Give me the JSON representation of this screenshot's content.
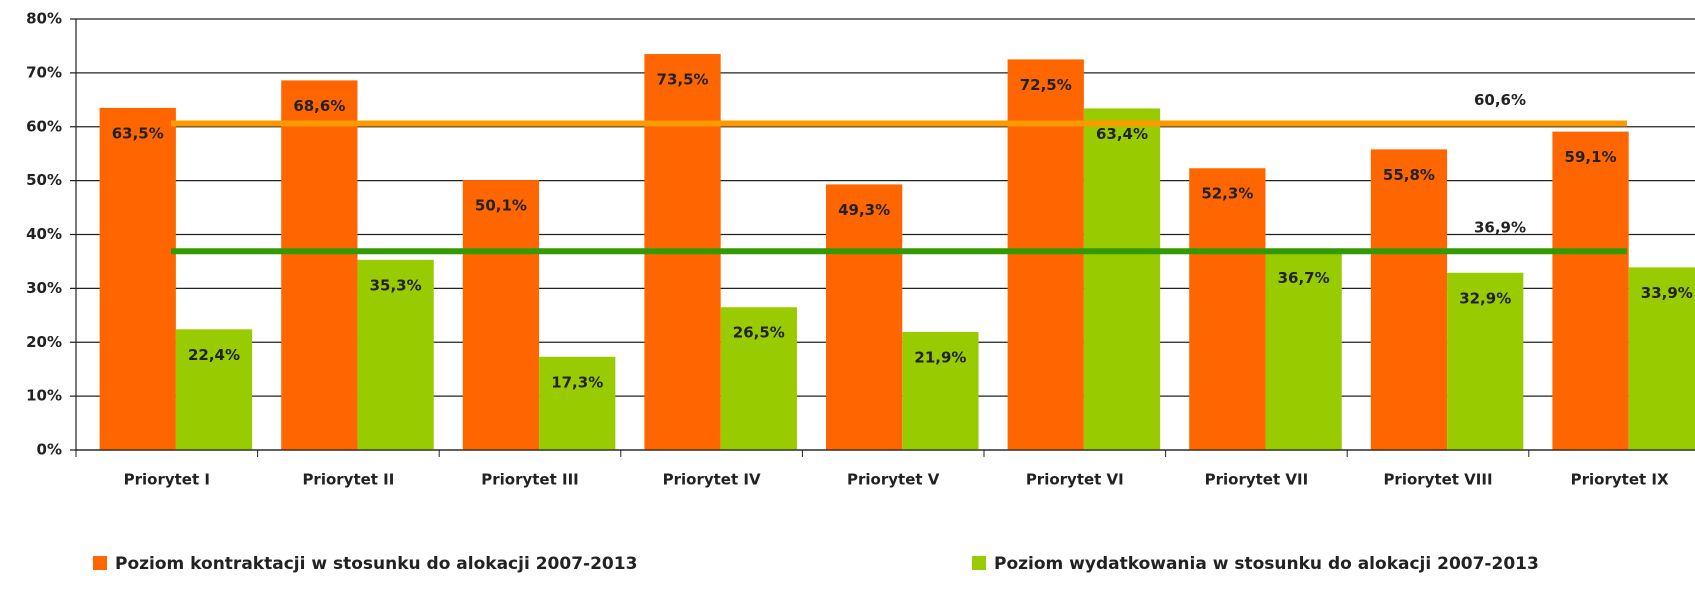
{
  "chart_data": {
    "type": "bar",
    "categories": [
      "Priorytet I",
      "Priorytet II",
      "Priorytet III",
      "Priorytet IV",
      "Priorytet V",
      "Priorytet VI",
      "Priorytet VII",
      "Priorytet VIII",
      "Priorytet IX"
    ],
    "series": [
      {
        "name": "Poziom kontraktacji w stosunku do alokacji 2007-2013",
        "color": "#ff6600",
        "values": [
          63.5,
          68.6,
          50.1,
          73.5,
          49.3,
          72.5,
          52.3,
          55.8,
          59.1
        ],
        "value_labels": [
          "63,5%",
          "68,6%",
          "50,1%",
          "73,5%",
          "49,3%",
          "72,5%",
          "52,3%",
          "55,8%",
          "59,1%"
        ]
      },
      {
        "name": "Poziom wydatkowania w stosunku do alokacji 2007-2013",
        "color": "#99cc00",
        "values": [
          22.4,
          35.3,
          17.3,
          26.5,
          21.9,
          63.4,
          36.7,
          32.9,
          33.9
        ],
        "value_labels": [
          "22,4%",
          "35,3%",
          "17,3%",
          "26,5%",
          "21,9%",
          "63,4%",
          "36,7%",
          "32,9%",
          "33,9%"
        ]
      }
    ],
    "reference_lines": [
      {
        "value": 60.6,
        "label": "60,6%",
        "color": "#ff9900"
      },
      {
        "value": 36.9,
        "label": "36,9%",
        "color": "#339900"
      }
    ],
    "ylim": [
      0,
      80
    ],
    "yticks": [
      {
        "value": 0,
        "label": "0%"
      },
      {
        "value": 10,
        "label": "10%"
      },
      {
        "value": 20,
        "label": "20%"
      },
      {
        "value": 30,
        "label": "30%"
      },
      {
        "value": 40,
        "label": "40%"
      },
      {
        "value": 50,
        "label": "50%"
      },
      {
        "value": 60,
        "label": "60%"
      },
      {
        "value": 70,
        "label": "70%"
      },
      {
        "value": 80,
        "label": "80%"
      }
    ],
    "grid": true,
    "legend": "bottom"
  }
}
